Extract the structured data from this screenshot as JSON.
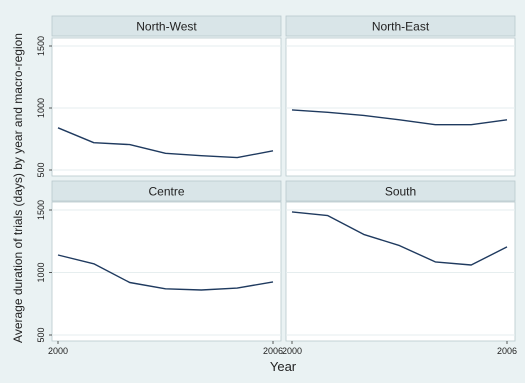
{
  "chart_data": {
    "type": "line",
    "xlabel": "Year",
    "ylabel": "Average duration of trials (days) by year and macro-region",
    "x": [
      2000,
      2001,
      2002,
      2003,
      2004,
      2005,
      2006
    ],
    "xlim": [
      2000,
      2006
    ],
    "ylim": [
      500,
      1500
    ],
    "x_ticks": [
      "2000",
      "2006"
    ],
    "y_ticks": [
      "500",
      "1000",
      "1500"
    ],
    "grid": true,
    "line_color": "#1f3a5f",
    "panels": [
      {
        "name": "North-West",
        "values": [
          840,
          720,
          705,
          635,
          615,
          600,
          655
        ]
      },
      {
        "name": "North-East",
        "values": [
          985,
          965,
          940,
          905,
          865,
          865,
          905
        ]
      },
      {
        "name": "Centre",
        "values": [
          1140,
          1070,
          920,
          870,
          860,
          875,
          925
        ]
      },
      {
        "name": "South",
        "values": [
          1485,
          1455,
          1305,
          1215,
          1085,
          1060,
          1205
        ]
      }
    ]
  }
}
